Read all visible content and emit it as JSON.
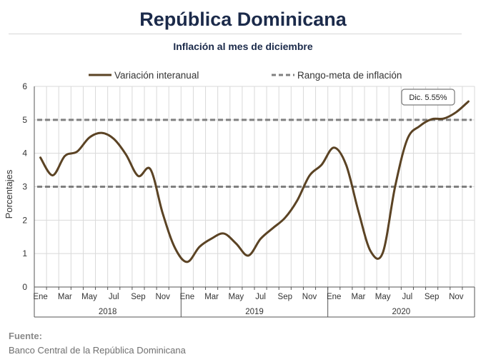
{
  "header": {
    "title": "República Dominicana"
  },
  "footer": {
    "source_label": "Fuente:",
    "source_text": "Banco Central de la República Dominicana"
  },
  "colors": {
    "series_line": "#5b4324",
    "target_line": "#808080",
    "grid": "#d9d9d9",
    "title": "#1b2a4a"
  },
  "chart_data": {
    "type": "line",
    "title": "Inflación al mes de diciembre",
    "ylabel": "Porcentajes",
    "ylim": [
      0,
      6
    ],
    "yticks": [
      0,
      1,
      2,
      3,
      4,
      5,
      6
    ],
    "grid": true,
    "legend_position": "top",
    "x": [
      "2018-01",
      "2018-02",
      "2018-03",
      "2018-04",
      "2018-05",
      "2018-06",
      "2018-07",
      "2018-08",
      "2018-09",
      "2018-10",
      "2018-11",
      "2018-12",
      "2019-01",
      "2019-02",
      "2019-03",
      "2019-04",
      "2019-05",
      "2019-06",
      "2019-07",
      "2019-08",
      "2019-09",
      "2019-10",
      "2019-11",
      "2019-12",
      "2020-01",
      "2020-02",
      "2020-03",
      "2020-04",
      "2020-05",
      "2020-06",
      "2020-07",
      "2020-08",
      "2020-09",
      "2020-10",
      "2020-11",
      "2020-12"
    ],
    "month_tick_labels": [
      "Ene",
      "",
      "Mar",
      "",
      "May",
      "",
      "Jul",
      "",
      "Sep",
      "",
      "Nov",
      "",
      "Ene",
      "",
      "Mar",
      "",
      "May",
      "",
      "Jul",
      "",
      "Sep",
      "",
      "Nov",
      "",
      "Ene",
      "",
      "Mar",
      "",
      "May",
      "",
      "Jul",
      "",
      "Sep",
      "",
      "Nov",
      ""
    ],
    "year_labels": [
      "2018",
      "2019",
      "2020"
    ],
    "series": [
      {
        "name": "Variación interanual",
        "values": [
          3.87,
          3.34,
          3.92,
          4.05,
          4.47,
          4.61,
          4.43,
          3.96,
          3.32,
          3.52,
          2.2,
          1.17,
          0.75,
          1.2,
          1.45,
          1.6,
          1.3,
          0.94,
          1.44,
          1.76,
          2.07,
          2.59,
          3.33,
          3.66,
          4.17,
          3.65,
          2.27,
          1.07,
          1.03,
          3.0,
          4.42,
          4.81,
          5.02,
          5.04,
          5.23,
          5.55
        ]
      },
      {
        "name": "Rango-meta de inflación",
        "bounds": [
          3,
          5
        ]
      }
    ],
    "annotations": [
      {
        "text": "Dic. 5.55%",
        "x": "2020-12",
        "y": 5.55
      }
    ]
  }
}
